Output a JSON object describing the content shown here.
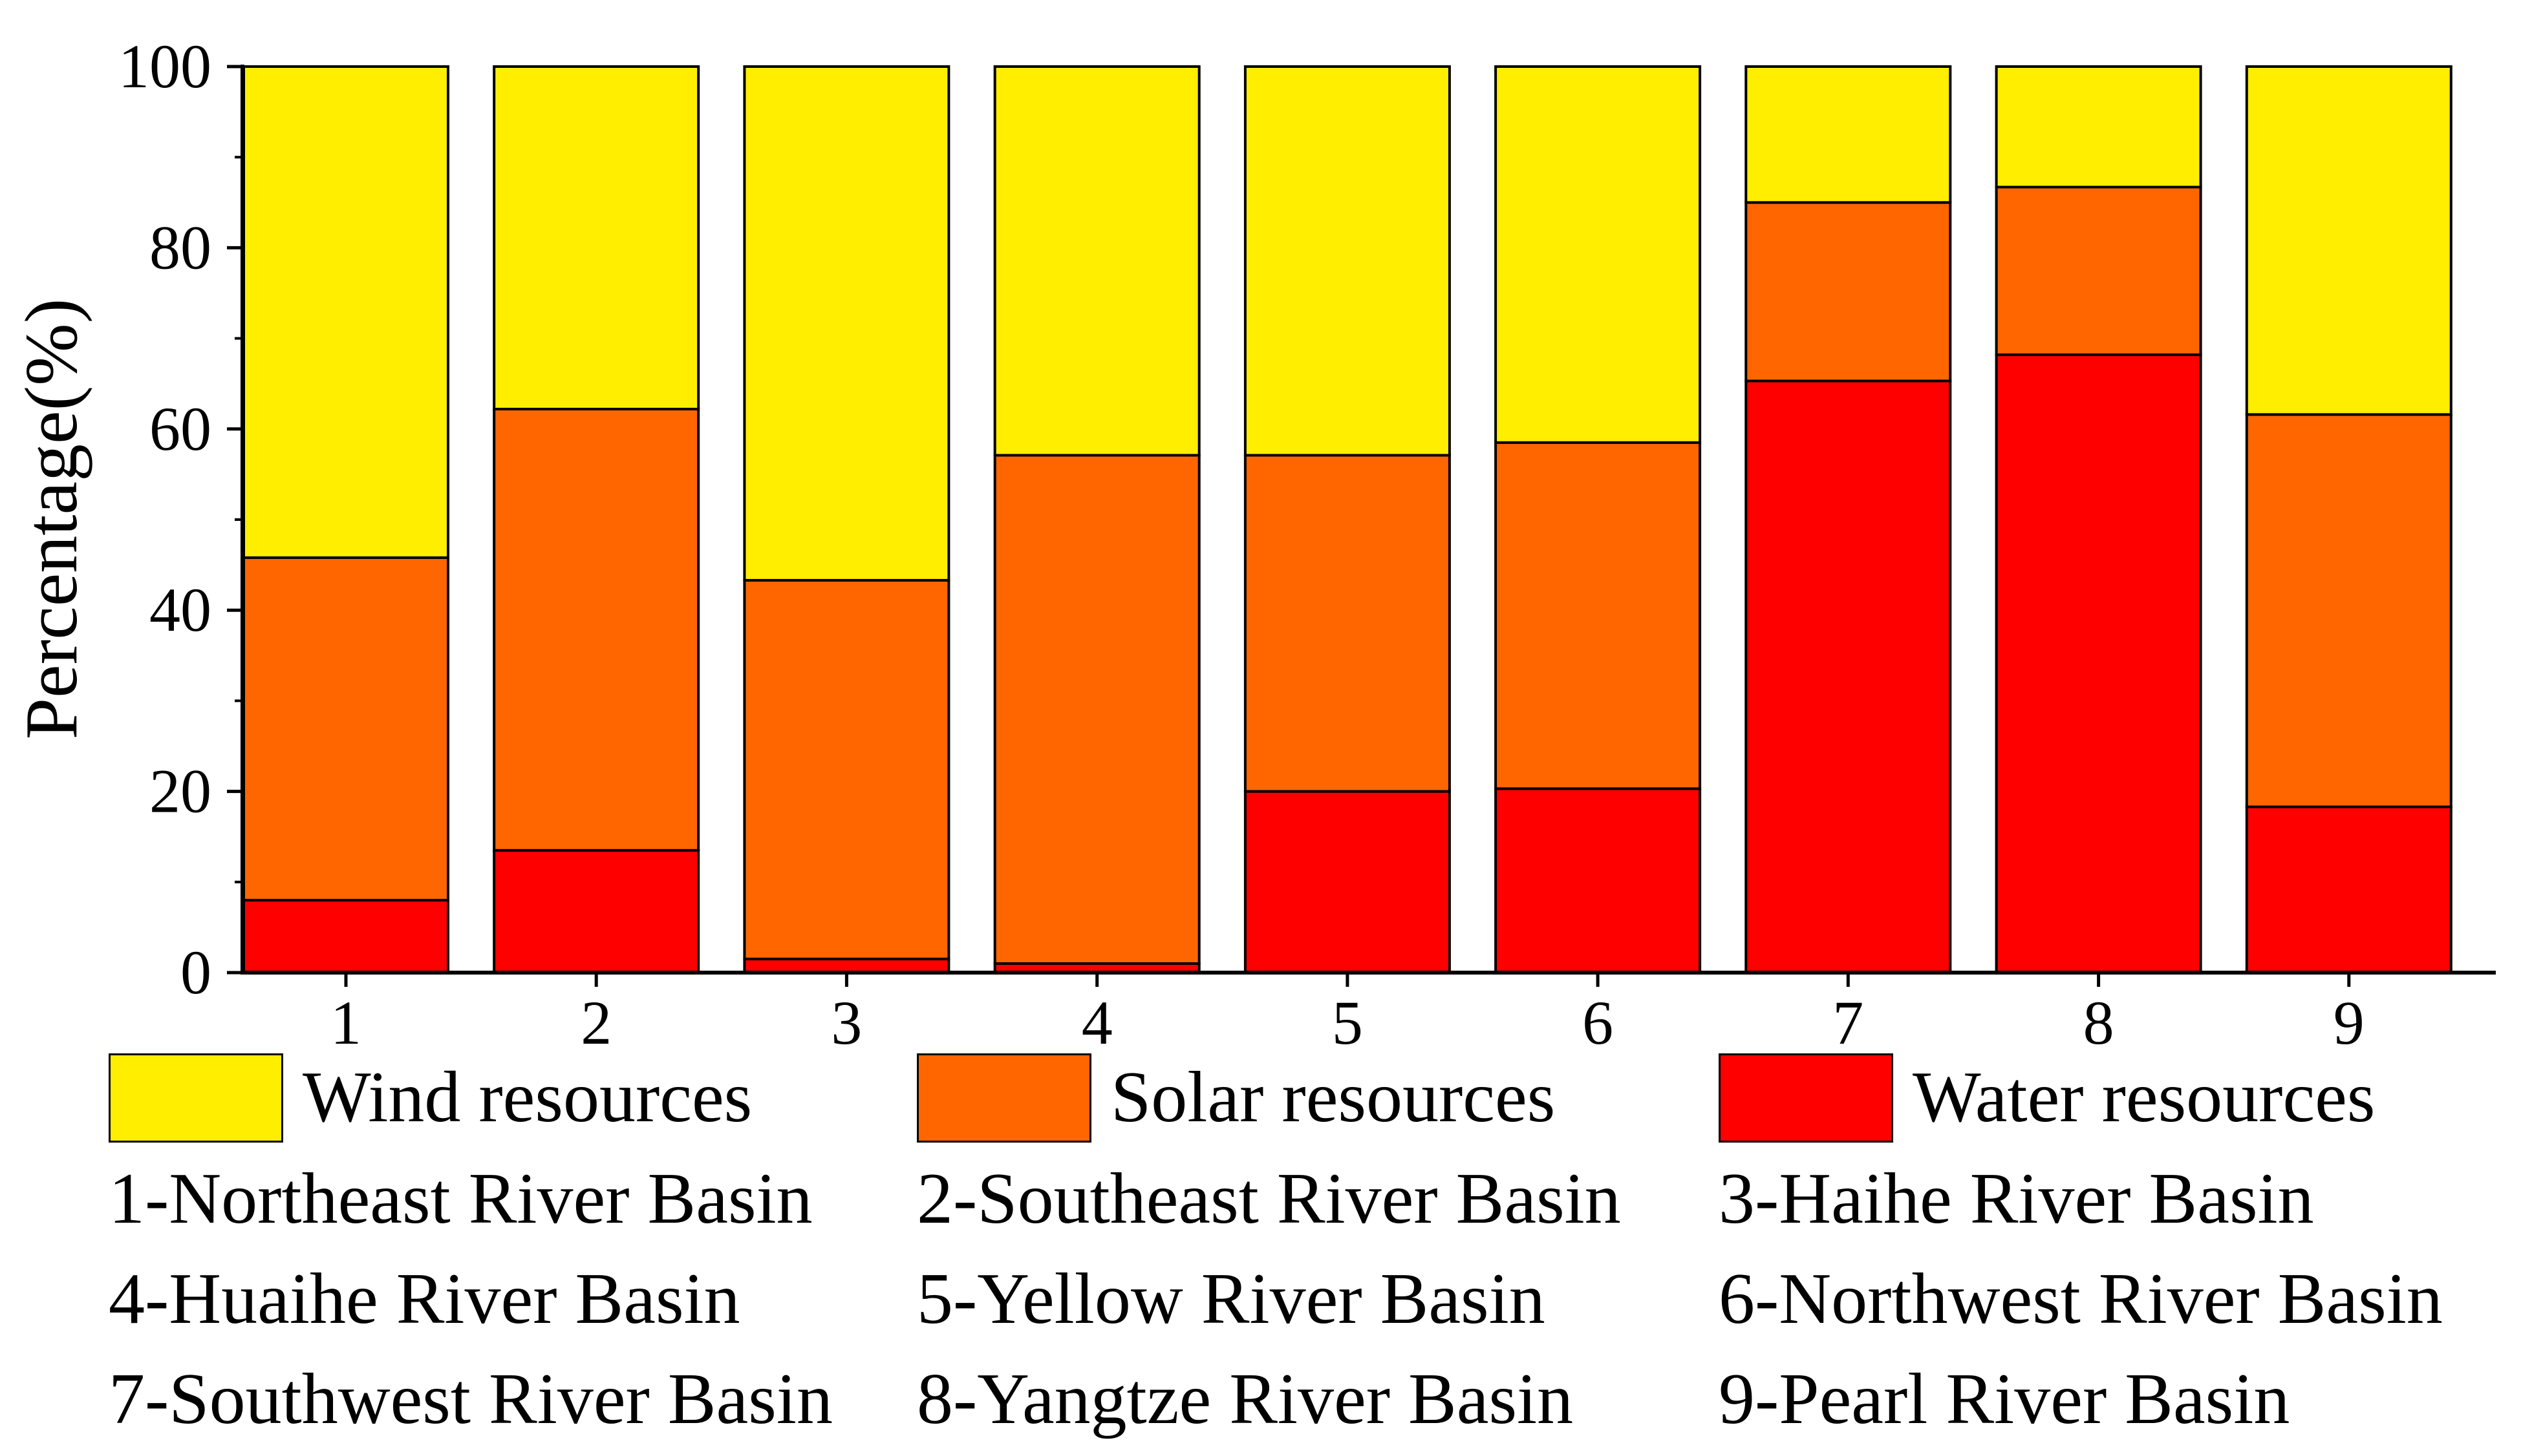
{
  "chart_data": {
    "type": "bar",
    "stacked": true,
    "title": "",
    "xlabel": "",
    "ylabel": "Percentage(%)",
    "ylim": [
      0,
      100
    ],
    "yticks": [
      0,
      20,
      40,
      60,
      80,
      100
    ],
    "categories": [
      "1",
      "2",
      "3",
      "4",
      "5",
      "6",
      "7",
      "8",
      "9"
    ],
    "series": [
      {
        "name": "Water resources",
        "color": "#ff0000",
        "values": [
          8,
          13.5,
          1.5,
          1,
          20,
          20.3,
          65.3,
          68.2,
          18.3
        ]
      },
      {
        "name": "Solar resources",
        "color": "#ff6600",
        "values": [
          37.8,
          48.7,
          41.8,
          56.1,
          37.1,
          38.2,
          19.7,
          18.5,
          43.3
        ]
      },
      {
        "name": "Wind resources",
        "color": "#ffee00",
        "values": [
          54.2,
          37.8,
          56.7,
          42.9,
          42.9,
          41.5,
          15,
          13.3,
          38.4
        ]
      }
    ],
    "legend_position": "bottom",
    "grid": false
  },
  "legend": [
    {
      "label": "Wind resources",
      "color": "#ffee00"
    },
    {
      "label": "Solar resources",
      "color": "#ff6600"
    },
    {
      "label": "Water resources",
      "color": "#ff0000"
    }
  ],
  "basins": [
    "1-Northeast River Basin",
    "2-Southeast River Basin",
    "3-Haihe River Basin",
    "4-Huaihe River Basin",
    "5-Yellow River Basin",
    "6-Northwest River Basin",
    "7-Southwest River Basin",
    "8-Yangtze River Basin",
    "9-Pearl River Basin"
  ]
}
